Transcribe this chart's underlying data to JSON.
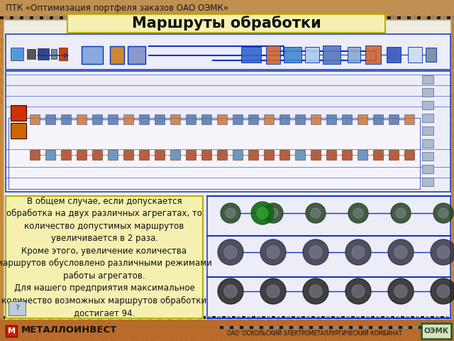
{
  "title": "Маршруты обработки",
  "header_text": "ПТК «Оптимизация портфеля заказов ОАО ОЭМК»",
  "footer_left": "МЕТАЛЛОИНВЕСТ",
  "footer_right": "ОАО ’ОСКОЛЬСКИЙ ЭЛЕКТРОМЕТАЛЛУРГИЧЕСКИЙ КОМБИНАТ",
  "footer_oem": "ОЭМК",
  "body_text": "В общем случае, если допускается\nобработка на двух различных агрегатах, то\nколичество допустимых маршрутов\nувеличивается в 2 раза.\nКроме этого, увеличение количества\nмаршрутов обусловлено различными режимами\nработы агрегатов.\nДля нашего предприятия максимальное\nколичество возможных маршрутов обработки\nдостигает 94.",
  "bg_orange": "#c8883a",
  "bg_light": "#e8b870",
  "slide_bg": "#f0ede0",
  "title_box_fill": "#f5f0b0",
  "title_box_edge": "#b8b000",
  "text_box_fill": "#f5f0b0",
  "text_box_edge": "#b8b000",
  "diag_fill": "#e8e8f5",
  "diag_edge": "#2244bb",
  "header_bg": "#c09050",
  "footer_bg": "#c07830",
  "film_dark": "#181818",
  "film_mid": "#888888",
  "title_fontsize": 15,
  "header_fontsize": 8.5,
  "body_fontsize": 8.5,
  "footer_fontsize": 8
}
